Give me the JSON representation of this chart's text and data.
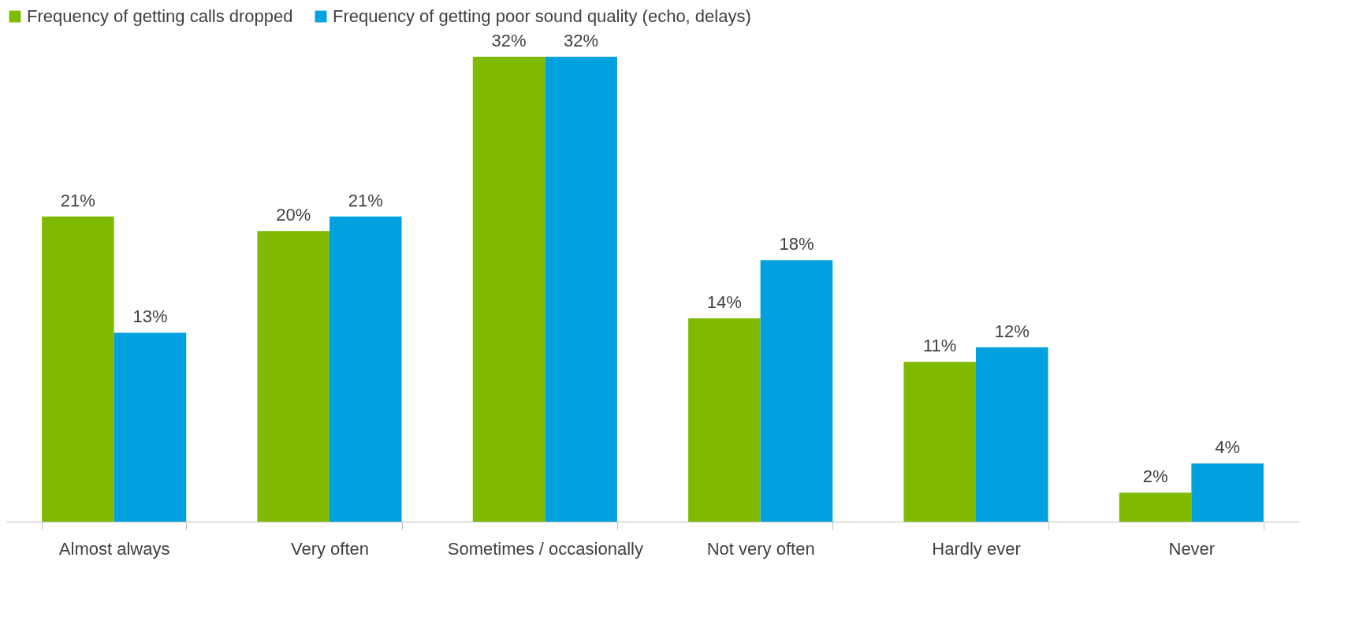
{
  "chart_data": {
    "type": "bar",
    "categories": [
      "Almost always",
      "Very often",
      "Sometimes / occasionally",
      "Not very often",
      "Hardly ever",
      "Never"
    ],
    "series": [
      {
        "name": "Frequency of getting calls dropped",
        "color": "#7fba00",
        "values": [
          21,
          20,
          32,
          14,
          11,
          2
        ],
        "value_labels": [
          "21%",
          "20%",
          "32%",
          "14%",
          "11%",
          "2%"
        ]
      },
      {
        "name": "Frequency of getting poor sound quality (echo, delays)",
        "color": "#00a1de",
        "values": [
          13,
          21,
          32,
          18,
          12,
          4
        ],
        "value_labels": [
          "13%",
          "21%",
          "32%",
          "18%",
          "12%",
          "4%"
        ]
      }
    ],
    "legend": "top"
  }
}
